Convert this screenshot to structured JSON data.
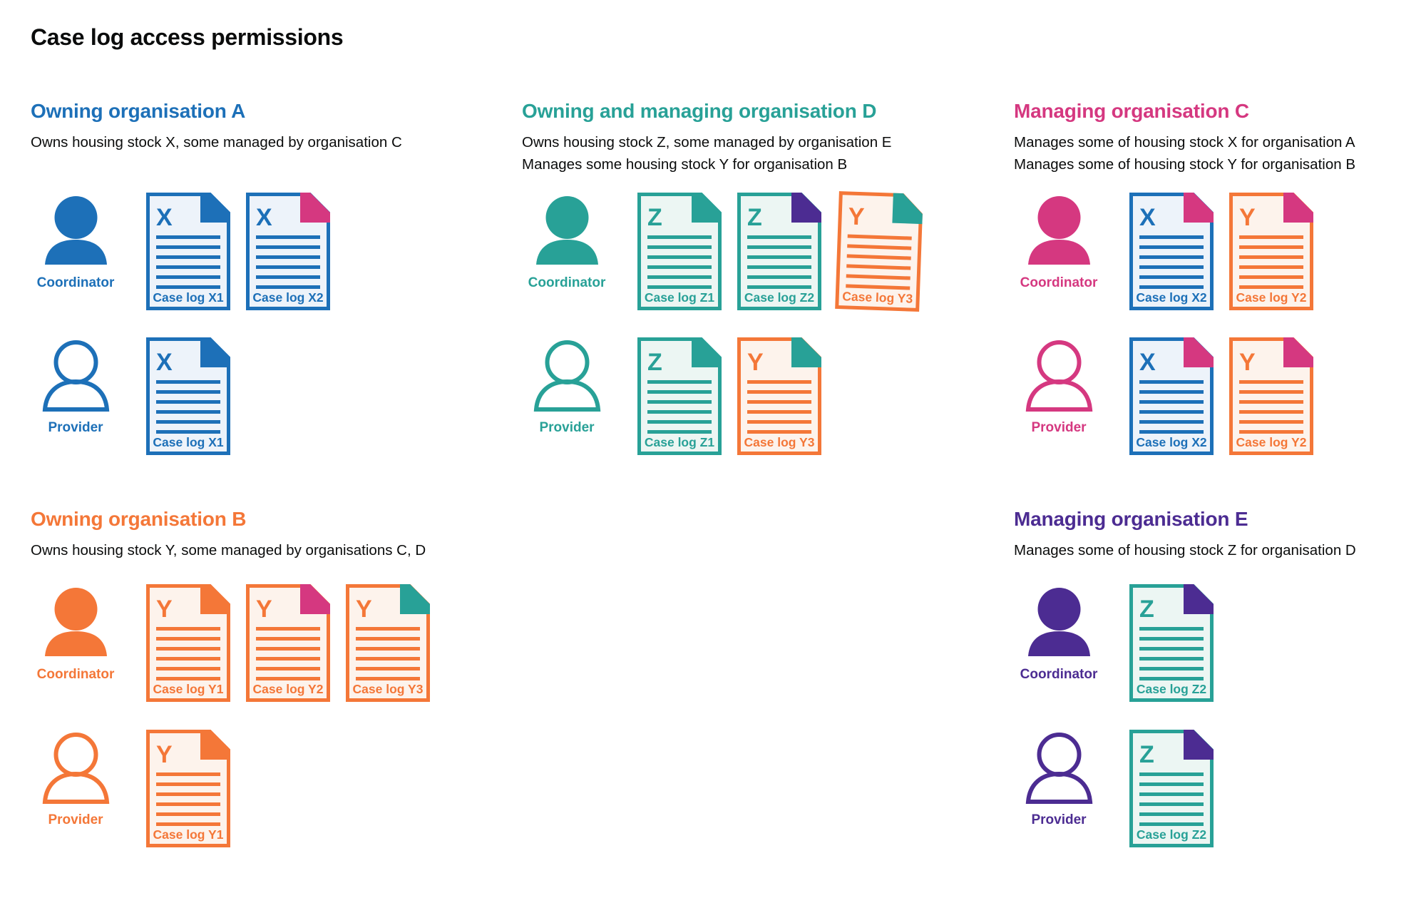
{
  "page_title": "Case log access permissions",
  "roles": {
    "coordinator_label": "Coordinator",
    "provider_label": "Provider"
  },
  "colors": {
    "blue": {
      "main": "#1d70b8",
      "fill": "#edf3fa"
    },
    "teal": {
      "main": "#28a197",
      "fill": "#ecf6f3"
    },
    "pink": {
      "main": "#d53880",
      "fill": "#fbeef5"
    },
    "orange": {
      "main": "#f47738",
      "fill": "#fdf3ec"
    },
    "purple": {
      "main": "#4c2c92",
      "fill": "#efecf7"
    },
    "text": {
      "main": "#0b0c0c",
      "fill": "#ffffff"
    }
  },
  "organisations": [
    {
      "id": "org-a",
      "name": "Owning organisation A",
      "color": "blue",
      "description_lines": [
        "Owns housing stock X, some managed by organisation C"
      ],
      "grid": {
        "column": 1,
        "row": 1
      },
      "rows": [
        {
          "role": "coordinator",
          "docs": [
            {
              "letter": "X",
              "label": "Case log X1",
              "doc_color": "blue",
              "fold_color": "blue"
            },
            {
              "letter": "X",
              "label": "Case log X2",
              "doc_color": "blue",
              "fold_color": "pink"
            }
          ]
        },
        {
          "role": "provider",
          "docs": [
            {
              "letter": "X",
              "label": "Case log X1",
              "doc_color": "blue",
              "fold_color": "blue"
            }
          ]
        }
      ]
    },
    {
      "id": "org-d",
      "name": "Owning and managing organisation D",
      "color": "teal",
      "description_lines": [
        "Owns housing stock Z, some managed by organisation E",
        "Manages some housing stock Y for organisation B"
      ],
      "grid": {
        "column": 2,
        "row": 1
      },
      "rows": [
        {
          "role": "coordinator",
          "docs": [
            {
              "letter": "Z",
              "label": "Case log Z1",
              "doc_color": "teal",
              "fold_color": "teal"
            },
            {
              "letter": "Z",
              "label": "Case log Z2",
              "doc_color": "teal",
              "fold_color": "purple"
            },
            {
              "letter": "Y",
              "label": "Case log Y3",
              "doc_color": "orange",
              "fold_color": "teal",
              "tilt": 2
            }
          ]
        },
        {
          "role": "provider",
          "docs": [
            {
              "letter": "Z",
              "label": "Case log Z1",
              "doc_color": "teal",
              "fold_color": "teal"
            },
            {
              "letter": "Y",
              "label": "Case log Y3",
              "doc_color": "orange",
              "fold_color": "teal"
            }
          ]
        }
      ]
    },
    {
      "id": "org-c",
      "name": "Managing organisation C",
      "color": "pink",
      "description_lines": [
        "Manages some of housing stock X for organisation A",
        "Manages some of housing stock Y for organisation B"
      ],
      "grid": {
        "column": 3,
        "row": 1
      },
      "rows": [
        {
          "role": "coordinator",
          "docs": [
            {
              "letter": "X",
              "label": "Case log X2",
              "doc_color": "blue",
              "fold_color": "pink"
            },
            {
              "letter": "Y",
              "label": "Case log Y2",
              "doc_color": "orange",
              "fold_color": "pink"
            }
          ]
        },
        {
          "role": "provider",
          "docs": [
            {
              "letter": "X",
              "label": "Case log X2",
              "doc_color": "blue",
              "fold_color": "pink"
            },
            {
              "letter": "Y",
              "label": "Case log Y2",
              "doc_color": "orange",
              "fold_color": "pink"
            }
          ]
        }
      ]
    },
    {
      "id": "org-b",
      "name": "Owning organisation B",
      "color": "orange",
      "description_lines": [
        "Owns housing stock Y, some managed by organisations C, D"
      ],
      "grid": {
        "column": 1,
        "row": 2
      },
      "rows": [
        {
          "role": "coordinator",
          "docs": [
            {
              "letter": "Y",
              "label": "Case log Y1",
              "doc_color": "orange",
              "fold_color": "orange"
            },
            {
              "letter": "Y",
              "label": "Case log Y2",
              "doc_color": "orange",
              "fold_color": "pink"
            },
            {
              "letter": "Y",
              "label": "Case log Y3",
              "doc_color": "orange",
              "fold_color": "teal"
            }
          ]
        },
        {
          "role": "provider",
          "docs": [
            {
              "letter": "Y",
              "label": "Case log Y1",
              "doc_color": "orange",
              "fold_color": "orange"
            }
          ]
        }
      ]
    },
    {
      "id": "org-e",
      "name": "Managing organisation E",
      "color": "purple",
      "description_lines": [
        "Manages some of housing stock Z for organisation D"
      ],
      "grid": {
        "column": 3,
        "row": 2
      },
      "rows": [
        {
          "role": "coordinator",
          "docs": [
            {
              "letter": "Z",
              "label": "Case log Z2",
              "doc_color": "teal",
              "fold_color": "purple"
            }
          ]
        },
        {
          "role": "provider",
          "docs": [
            {
              "letter": "Z",
              "label": "Case log Z2",
              "doc_color": "teal",
              "fold_color": "purple"
            }
          ]
        }
      ]
    }
  ]
}
